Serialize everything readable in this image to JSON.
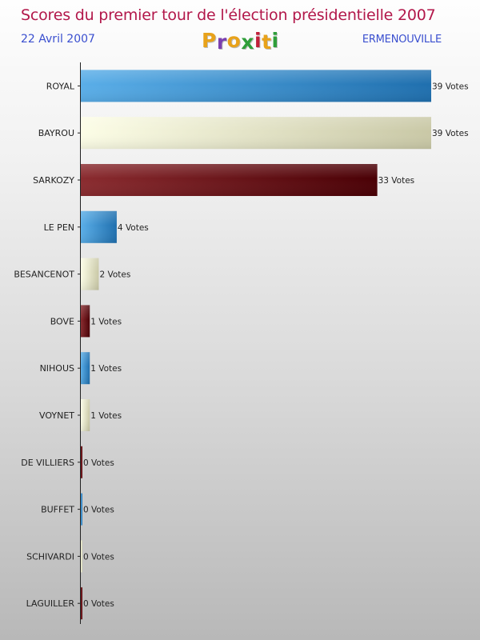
{
  "header": {
    "title": "Scores du premier tour de l'élection présidentielle 2007",
    "date": "22 Avril 2007",
    "town": "ERMENOUVILLE",
    "logo_text": "Proxiti"
  },
  "colors": {
    "title": "#b2174a",
    "subtitle": "#3a4fcf",
    "blue": "#3d93d6",
    "cream": "#f2f2cf",
    "maroon": "#6b0f16",
    "logo": [
      "#e8a21a",
      "#7a3fb0",
      "#e8a21a",
      "#2f9e3a",
      "#c01f3a",
      "#e8a21a",
      "#2f9e3a"
    ]
  },
  "chart_data": {
    "type": "bar",
    "orientation": "horizontal",
    "categories": [
      "ROYAL",
      "BAYROU",
      "SARKOZY",
      "LE PEN",
      "BESANCENOT",
      "BOVE",
      "NIHOUS",
      "VOYNET",
      "DE VILLIERS",
      "BUFFET",
      "SCHIVARDI",
      "LAGUILLER"
    ],
    "values": [
      39,
      39,
      33,
      4,
      2,
      1,
      1,
      1,
      0,
      0,
      0,
      0
    ],
    "value_labels": [
      "39 Votes",
      "39 Votes",
      "33 Votes",
      "4 Votes",
      "2 Votes",
      "1 Votes",
      "1 Votes",
      "1 Votes",
      "0 Votes",
      "0 Votes",
      "0 Votes",
      "0 Votes"
    ],
    "bar_colors": [
      "blue",
      "cream",
      "maroon",
      "blue",
      "cream",
      "maroon",
      "blue",
      "cream",
      "maroon",
      "blue",
      "cream",
      "maroon"
    ],
    "xlim": [
      0,
      39
    ],
    "grid": false,
    "legend": "none"
  }
}
